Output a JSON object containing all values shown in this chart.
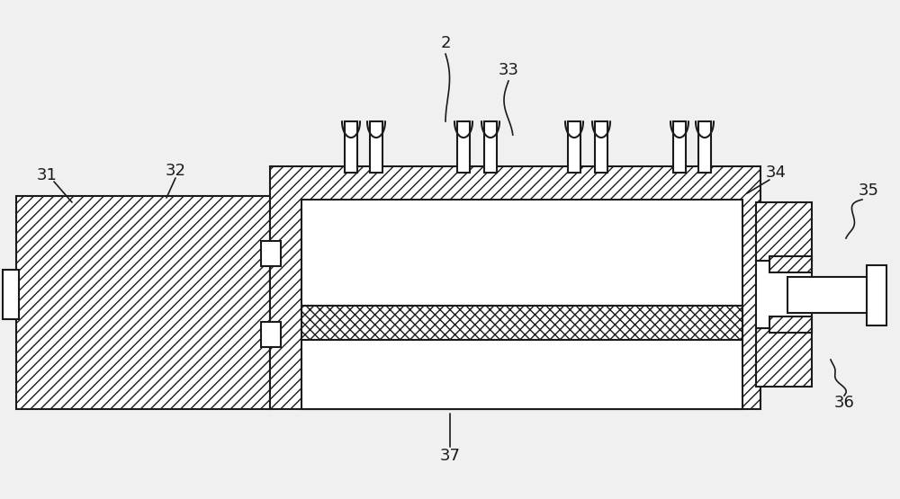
{
  "bg_color": "#f0f0f0",
  "line_color": "#1a1a1a",
  "figsize": [
    10.0,
    5.55
  ],
  "dpi": 100
}
